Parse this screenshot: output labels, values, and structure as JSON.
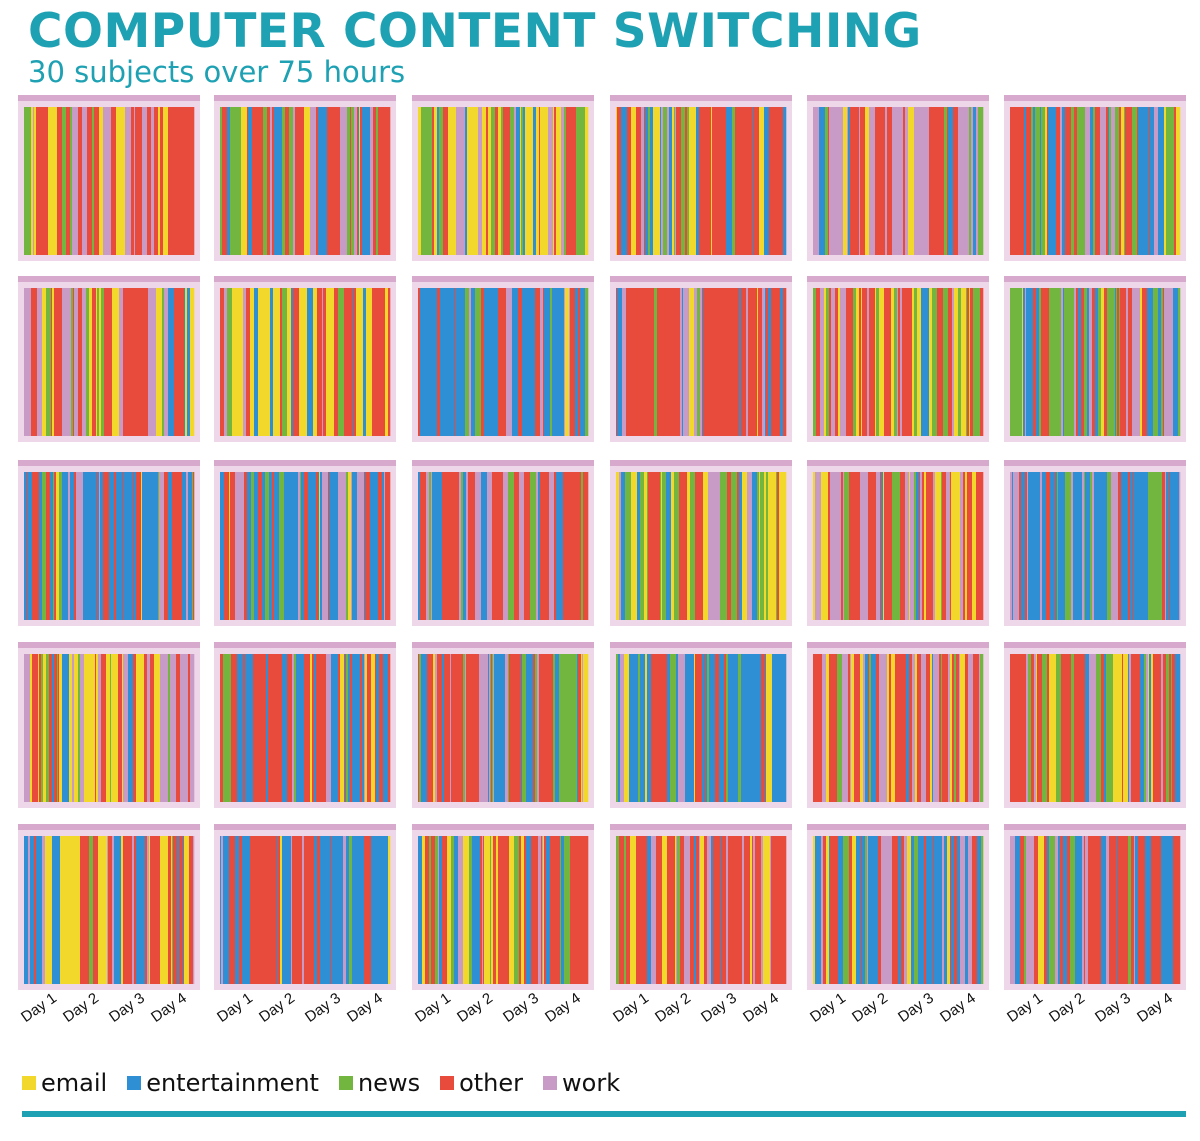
{
  "header": {
    "title": "COMPUTER CONTENT SWITCHING",
    "subtitle": "30 subjects over 75 hours"
  },
  "colors": {
    "email": "#f2d82a",
    "entertainment": "#2f8fd4",
    "news": "#72b63f",
    "other": "#e84a3c",
    "work": "#c79bc6",
    "panel_frame": "#eed7e8",
    "panel_header": "#d7a9cc",
    "accent": "#1ea1b3"
  },
  "chart_data": {
    "type": "heatmap",
    "description_units": "categorical time series of active content category, 30 subjects",
    "x_ticks": [
      "Day 1",
      "Day 2",
      "Day 3",
      "Day 4"
    ],
    "categories": [
      "email",
      "entertainment",
      "news",
      "other",
      "work"
    ],
    "legend": [
      {
        "name": "email",
        "color": "#f2d82a"
      },
      {
        "name": "entertainment",
        "color": "#2f8fd4"
      },
      {
        "name": "news",
        "color": "#72b63f"
      },
      {
        "name": "other",
        "color": "#e84a3c"
      },
      {
        "name": "work",
        "color": "#c79bc6"
      }
    ],
    "legend_position": "bottom-left",
    "panels": [
      {
        "id": 1,
        "weights": [
          0.1,
          0.12,
          0.12,
          0.48,
          0.18
        ]
      },
      {
        "id": 2,
        "weights": [
          0.08,
          0.22,
          0.12,
          0.42,
          0.16
        ]
      },
      {
        "id": 3,
        "weights": [
          0.25,
          0.08,
          0.22,
          0.3,
          0.15
        ]
      },
      {
        "id": 4,
        "weights": [
          0.18,
          0.22,
          0.12,
          0.35,
          0.13
        ]
      },
      {
        "id": 5,
        "weights": [
          0.06,
          0.1,
          0.08,
          0.36,
          0.4
        ]
      },
      {
        "id": 6,
        "weights": [
          0.08,
          0.28,
          0.2,
          0.34,
          0.1
        ]
      },
      {
        "id": 7,
        "weights": [
          0.2,
          0.12,
          0.2,
          0.3,
          0.18
        ]
      },
      {
        "id": 8,
        "weights": [
          0.3,
          0.04,
          0.06,
          0.45,
          0.15
        ]
      },
      {
        "id": 9,
        "weights": [
          0.08,
          0.45,
          0.1,
          0.27,
          0.1
        ]
      },
      {
        "id": 10,
        "weights": [
          0.05,
          0.25,
          0.05,
          0.55,
          0.1
        ]
      },
      {
        "id": 11,
        "weights": [
          0.2,
          0.06,
          0.24,
          0.34,
          0.16
        ]
      },
      {
        "id": 12,
        "weights": [
          0.12,
          0.25,
          0.2,
          0.3,
          0.13
        ]
      },
      {
        "id": 13,
        "weights": [
          0.06,
          0.4,
          0.06,
          0.36,
          0.12
        ]
      },
      {
        "id": 14,
        "weights": [
          0.06,
          0.3,
          0.1,
          0.38,
          0.16
        ]
      },
      {
        "id": 15,
        "weights": [
          0.04,
          0.28,
          0.06,
          0.45,
          0.17
        ]
      },
      {
        "id": 16,
        "weights": [
          0.28,
          0.12,
          0.3,
          0.2,
          0.1
        ]
      },
      {
        "id": 17,
        "weights": [
          0.16,
          0.04,
          0.12,
          0.48,
          0.2
        ]
      },
      {
        "id": 18,
        "weights": [
          0.04,
          0.55,
          0.08,
          0.18,
          0.15
        ]
      },
      {
        "id": 19,
        "weights": [
          0.3,
          0.06,
          0.14,
          0.34,
          0.16
        ]
      },
      {
        "id": 20,
        "weights": [
          0.06,
          0.3,
          0.06,
          0.48,
          0.1
        ]
      },
      {
        "id": 21,
        "weights": [
          0.1,
          0.2,
          0.26,
          0.28,
          0.16
        ]
      },
      {
        "id": 22,
        "weights": [
          0.06,
          0.6,
          0.14,
          0.12,
          0.08
        ]
      },
      {
        "id": 23,
        "weights": [
          0.22,
          0.04,
          0.1,
          0.34,
          0.3
        ]
      },
      {
        "id": 24,
        "weights": [
          0.14,
          0.08,
          0.22,
          0.44,
          0.12
        ]
      },
      {
        "id": 25,
        "weights": [
          0.24,
          0.18,
          0.1,
          0.34,
          0.14
        ]
      },
      {
        "id": 26,
        "weights": [
          0.04,
          0.52,
          0.04,
          0.26,
          0.14
        ]
      },
      {
        "id": 27,
        "weights": [
          0.22,
          0.14,
          0.22,
          0.32,
          0.1
        ]
      },
      {
        "id": 28,
        "weights": [
          0.06,
          0.1,
          0.06,
          0.52,
          0.26
        ]
      },
      {
        "id": 29,
        "weights": [
          0.1,
          0.34,
          0.06,
          0.34,
          0.16
        ]
      },
      {
        "id": 30,
        "weights": [
          0.06,
          0.4,
          0.16,
          0.3,
          0.08
        ]
      }
    ]
  }
}
